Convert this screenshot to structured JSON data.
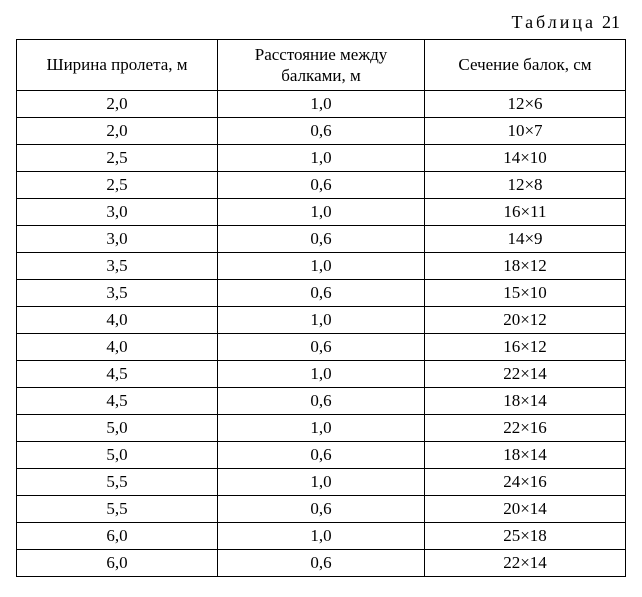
{
  "caption": {
    "word": "Таблица",
    "number": "21"
  },
  "table": {
    "columns": [
      "Ширина пролета, м",
      "Расстояние между балками, м",
      "Сечение балок, см"
    ],
    "rows": [
      [
        "2,0",
        "1,0",
        "12×6"
      ],
      [
        "2,0",
        "0,6",
        "10×7"
      ],
      [
        "2,5",
        "1,0",
        "14×10"
      ],
      [
        "2,5",
        "0,6",
        "12×8"
      ],
      [
        "3,0",
        "1,0",
        "16×11"
      ],
      [
        "3,0",
        "0,6",
        "14×9"
      ],
      [
        "3,5",
        "1,0",
        "18×12"
      ],
      [
        "3,5",
        "0,6",
        "15×10"
      ],
      [
        "4,0",
        "1,0",
        "20×12"
      ],
      [
        "4,0",
        "0,6",
        "16×12"
      ],
      [
        "4,5",
        "1,0",
        "22×14"
      ],
      [
        "4,5",
        "0,6",
        "18×14"
      ],
      [
        "5,0",
        "1,0",
        "22×16"
      ],
      [
        "5,0",
        "0,6",
        "18×14"
      ],
      [
        "5,5",
        "1,0",
        "24×16"
      ],
      [
        "5,5",
        "0,6",
        "20×14"
      ],
      [
        "6,0",
        "1,0",
        "25×18"
      ],
      [
        "6,0",
        "0,6",
        "22×14"
      ]
    ]
  }
}
